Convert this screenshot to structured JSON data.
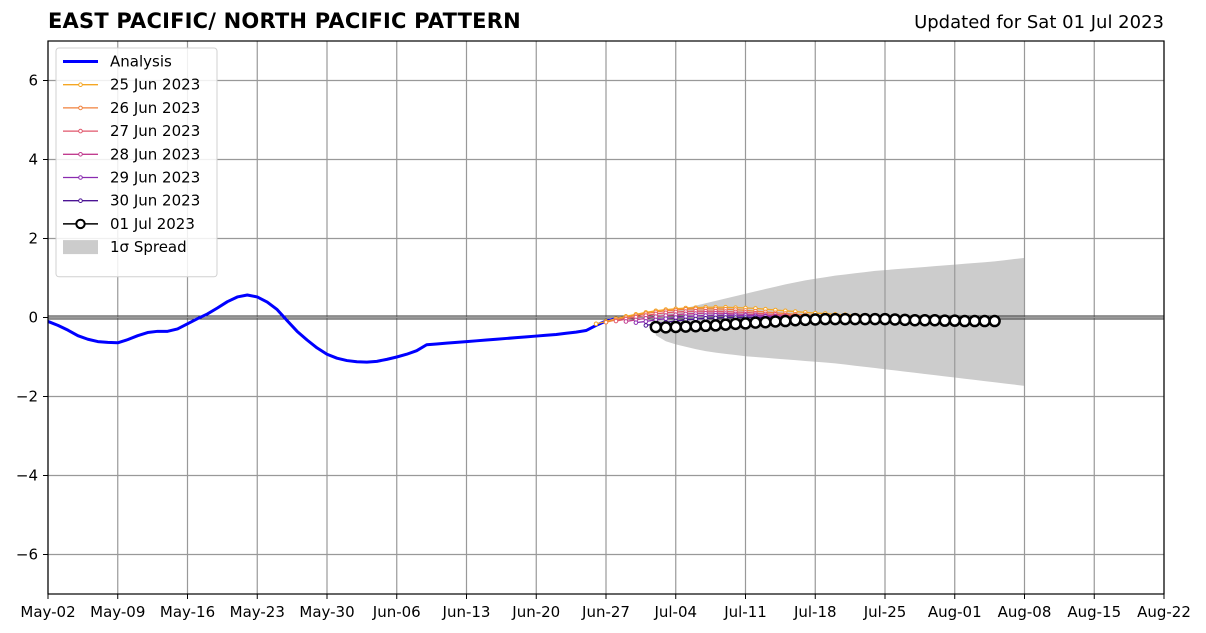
{
  "header": {
    "title": "EAST PACIFIC/ NORTH PACIFIC PATTERN",
    "updated": "Updated for Sat 01 Jul 2023"
  },
  "chart_data": {
    "type": "line",
    "title": "EAST PACIFIC/ NORTH PACIFIC PATTERN",
    "subtitle": "Updated for Sat 01 Jul 2023",
    "xlabel": "",
    "ylabel": "",
    "xlim": [
      "2023-05-02",
      "2023-08-22"
    ],
    "ylim": [
      -7,
      7
    ],
    "x_ticks": [
      "May-02",
      "May-09",
      "May-16",
      "May-23",
      "May-30",
      "Jun-06",
      "Jun-13",
      "Jun-20",
      "Jun-27",
      "Jul-04",
      "Jul-11",
      "Jul-18",
      "Jul-25",
      "Aug-01",
      "Aug-08",
      "Aug-15",
      "Aug-22"
    ],
    "y_ticks": [
      -6,
      -4,
      -2,
      0,
      2,
      4,
      6
    ],
    "grid": true,
    "zero_line": true,
    "legend_position": "top-left",
    "analysis": {
      "name": "Analysis",
      "color": "#0000ff",
      "points": [
        [
          "2023-05-02",
          -0.1
        ],
        [
          "2023-05-03",
          -0.2
        ],
        [
          "2023-05-04",
          -0.32
        ],
        [
          "2023-05-05",
          -0.46
        ],
        [
          "2023-05-06",
          -0.55
        ],
        [
          "2023-05-07",
          -0.61
        ],
        [
          "2023-05-08",
          -0.63
        ],
        [
          "2023-05-09",
          -0.64
        ],
        [
          "2023-05-10",
          -0.56
        ],
        [
          "2023-05-11",
          -0.46
        ],
        [
          "2023-05-12",
          -0.38
        ],
        [
          "2023-05-13",
          -0.35
        ],
        [
          "2023-05-14",
          -0.35
        ],
        [
          "2023-05-15",
          -0.29
        ],
        [
          "2023-05-16",
          -0.16
        ],
        [
          "2023-05-17",
          -0.03
        ],
        [
          "2023-05-18",
          0.09
        ],
        [
          "2023-05-19",
          0.24
        ],
        [
          "2023-05-20",
          0.4
        ],
        [
          "2023-05-21",
          0.52
        ],
        [
          "2023-05-22",
          0.57
        ],
        [
          "2023-05-23",
          0.52
        ],
        [
          "2023-05-24",
          0.39
        ],
        [
          "2023-05-25",
          0.2
        ],
        [
          "2023-05-26",
          -0.08
        ],
        [
          "2023-05-27",
          -0.35
        ],
        [
          "2023-05-28",
          -0.57
        ],
        [
          "2023-05-29",
          -0.77
        ],
        [
          "2023-05-30",
          -0.93
        ],
        [
          "2023-05-31",
          -1.03
        ],
        [
          "2023-06-01",
          -1.09
        ],
        [
          "2023-06-02",
          -1.12
        ],
        [
          "2023-06-03",
          -1.13
        ],
        [
          "2023-06-04",
          -1.11
        ],
        [
          "2023-06-05",
          -1.06
        ],
        [
          "2023-06-06",
          -1.0
        ],
        [
          "2023-06-07",
          -0.93
        ],
        [
          "2023-06-08",
          -0.84
        ],
        [
          "2023-06-09",
          -0.69
        ],
        [
          "2023-06-10",
          -0.67
        ],
        [
          "2023-06-11",
          -0.65
        ],
        [
          "2023-06-12",
          -0.63
        ],
        [
          "2023-06-13",
          -0.61
        ],
        [
          "2023-06-14",
          -0.59
        ],
        [
          "2023-06-15",
          -0.57
        ],
        [
          "2023-06-16",
          -0.55
        ],
        [
          "2023-06-17",
          -0.53
        ],
        [
          "2023-06-18",
          -0.51
        ],
        [
          "2023-06-19",
          -0.49
        ],
        [
          "2023-06-20",
          -0.47
        ],
        [
          "2023-06-21",
          -0.45
        ],
        [
          "2023-06-22",
          -0.43
        ],
        [
          "2023-06-23",
          -0.4
        ],
        [
          "2023-06-24",
          -0.37
        ],
        [
          "2023-06-25",
          -0.33
        ],
        [
          "2023-06-26",
          -0.2
        ],
        [
          "2023-06-27",
          -0.09
        ],
        [
          "2023-06-28",
          -0.03
        ],
        [
          "2023-06-29",
          -0.02
        ]
      ]
    },
    "forecasts": [
      {
        "name": "25 Jun 2023",
        "color": "#f5a623",
        "start": "2023-06-26",
        "values": [
          -0.16,
          -0.1,
          -0.03,
          0.03,
          0.08,
          0.13,
          0.17,
          0.2,
          0.22,
          0.24,
          0.25,
          0.26,
          0.26,
          0.26,
          0.25,
          0.24,
          0.23,
          0.21,
          0.19,
          0.17,
          0.15,
          0.13,
          0.11,
          0.1,
          0.08,
          0.07,
          0.06,
          0.05,
          0.04,
          0.03,
          0.03,
          0.02,
          0.02,
          0.01,
          0.01
        ]
      },
      {
        "name": "26 Jun 2023",
        "color": "#f0803c",
        "start": "2023-06-27",
        "values": [
          -0.12,
          -0.06,
          0.0,
          0.05,
          0.1,
          0.14,
          0.17,
          0.19,
          0.21,
          0.22,
          0.22,
          0.22,
          0.21,
          0.2,
          0.18,
          0.16,
          0.14,
          0.12,
          0.1,
          0.08,
          0.07,
          0.05,
          0.04,
          0.03,
          0.02,
          0.01,
          0.0,
          -0.01,
          -0.02,
          -0.02,
          -0.03,
          -0.03,
          -0.03,
          -0.04,
          -0.04
        ]
      },
      {
        "name": "27 Jun 2023",
        "color": "#e0566b",
        "start": "2023-06-28",
        "values": [
          -0.09,
          -0.04,
          0.01,
          0.05,
          0.09,
          0.12,
          0.14,
          0.15,
          0.16,
          0.16,
          0.16,
          0.15,
          0.14,
          0.13,
          0.11,
          0.09,
          0.08,
          0.06,
          0.05,
          0.03,
          0.02,
          0.01,
          0.0,
          -0.01,
          -0.02,
          -0.03,
          -0.03,
          -0.04,
          -0.04,
          -0.04,
          -0.05,
          -0.05,
          -0.05,
          -0.05,
          -0.05
        ]
      },
      {
        "name": "28 Jun 2023",
        "color": "#c13d8f",
        "start": "2023-06-29",
        "values": [
          -0.1,
          -0.06,
          -0.02,
          0.02,
          0.05,
          0.07,
          0.09,
          0.1,
          0.11,
          0.11,
          0.1,
          0.09,
          0.08,
          0.07,
          0.05,
          0.04,
          0.03,
          0.02,
          0.01,
          0.0,
          -0.01,
          -0.02,
          -0.03,
          -0.03,
          -0.04,
          -0.04,
          -0.05,
          -0.05,
          -0.05,
          -0.06,
          -0.06,
          -0.06,
          -0.06,
          -0.06,
          -0.06
        ]
      },
      {
        "name": "29 Jun 2023",
        "color": "#8a2bb0",
        "start": "2023-06-30",
        "values": [
          -0.13,
          -0.1,
          -0.06,
          -0.03,
          0.0,
          0.02,
          0.04,
          0.05,
          0.06,
          0.06,
          0.05,
          0.05,
          0.04,
          0.03,
          0.02,
          0.01,
          0.0,
          -0.01,
          -0.02,
          -0.02,
          -0.03,
          -0.04,
          -0.04,
          -0.05,
          -0.05,
          -0.05,
          -0.06,
          -0.06,
          -0.06,
          -0.06,
          -0.07,
          -0.07,
          -0.07,
          -0.07,
          -0.07
        ]
      },
      {
        "name": "30 Jun 2023",
        "color": "#4b1494",
        "start": "2023-07-01",
        "values": [
          -0.2,
          -0.16,
          -0.12,
          -0.09,
          -0.06,
          -0.04,
          -0.02,
          -0.01,
          0.0,
          0.0,
          0.0,
          0.0,
          -0.01,
          -0.01,
          -0.02,
          -0.02,
          -0.03,
          -0.03,
          -0.04,
          -0.04,
          -0.05,
          -0.05,
          -0.05,
          -0.06,
          -0.06,
          -0.06,
          -0.07,
          -0.07,
          -0.07,
          -0.07,
          -0.08,
          -0.08,
          -0.08,
          -0.08,
          -0.08
        ]
      },
      {
        "name": "01 Jul 2023",
        "color": "#000000",
        "start": "2023-07-02",
        "marker": "open-circle",
        "values": [
          -0.24,
          -0.25,
          -0.24,
          -0.23,
          -0.22,
          -0.21,
          -0.2,
          -0.18,
          -0.16,
          -0.15,
          -0.13,
          -0.12,
          -0.1,
          -0.09,
          -0.07,
          -0.06,
          -0.05,
          -0.04,
          -0.04,
          -0.04,
          -0.04,
          -0.04,
          -0.04,
          -0.04,
          -0.05,
          -0.06,
          -0.07,
          -0.07,
          -0.07,
          -0.08,
          -0.08,
          -0.09,
          -0.09,
          -0.09,
          -0.09
        ]
      }
    ],
    "spread": {
      "name": "1σ Spread",
      "color": "#cccccc",
      "start": "2023-07-02",
      "upper": [
        0.05,
        0.12,
        0.18,
        0.24,
        0.3,
        0.36,
        0.42,
        0.48,
        0.54,
        0.6,
        0.66,
        0.72,
        0.78,
        0.84,
        0.89,
        0.94,
        0.98,
        1.02,
        1.06,
        1.09,
        1.12,
        1.15,
        1.18,
        1.2,
        1.22,
        1.24,
        1.26,
        1.28,
        1.3,
        1.32,
        1.34,
        1.36,
        1.38,
        1.4,
        1.42,
        1.45,
        1.48,
        1.51
      ],
      "lower": [
        -0.45,
        -0.6,
        -0.68,
        -0.74,
        -0.8,
        -0.85,
        -0.89,
        -0.92,
        -0.95,
        -0.98,
        -1.0,
        -1.02,
        -1.04,
        -1.06,
        -1.08,
        -1.1,
        -1.12,
        -1.14,
        -1.16,
        -1.19,
        -1.22,
        -1.25,
        -1.28,
        -1.31,
        -1.34,
        -1.37,
        -1.4,
        -1.43,
        -1.46,
        -1.49,
        -1.52,
        -1.55,
        -1.58,
        -1.61,
        -1.64,
        -1.67,
        -1.7,
        -1.73
      ]
    }
  }
}
